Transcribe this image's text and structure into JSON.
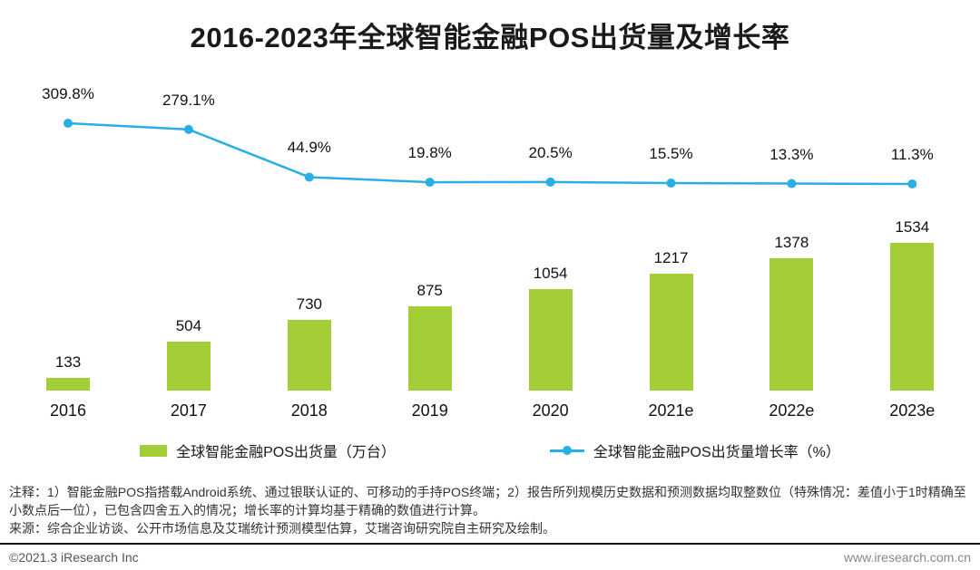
{
  "title": "2016-2023年全球智能金融POS出货量及增长率",
  "chart_data": {
    "type": "bar",
    "categories": [
      "2016",
      "2017",
      "2018",
      "2019",
      "2020",
      "2021e",
      "2022e",
      "2023e"
    ],
    "series": [
      {
        "name": "全球智能金融POS出货量（万台）",
        "type": "bar",
        "color": "#A3CE38",
        "values": [
          133,
          504,
          730,
          875,
          1054,
          1217,
          1378,
          1534
        ]
      },
      {
        "name": "全球智能金融POS出货量增长率（%）",
        "type": "line",
        "color": "#29AEE5",
        "values": [
          309.8,
          279.1,
          44.9,
          19.8,
          20.5,
          15.5,
          13.3,
          11.3
        ]
      }
    ],
    "title": "2016-2023年全球智能金融POS出货量及增长率",
    "xlabel": "",
    "ylabel": "",
    "grid": false,
    "legend_position": "bottom"
  },
  "notes": "注释：1）智能金融POS指搭载Android系统、通过银联认证的、可移动的手持POS终端；2）报告所列规模历史数据和预测数据均取整数位（特殊情况：差值小于1时精确至小数点后一位），已包含四舍五入的情况；增长率的计算均基于精确的数值进行计算。",
  "source": "来源：综合企业访谈、公开市场信息及艾瑞统计预测模型估算，艾瑞咨询研究院自主研究及绘制。",
  "footer": {
    "left": "©2021.3 iResearch Inc",
    "right": "www.iresearch.com.cn"
  }
}
